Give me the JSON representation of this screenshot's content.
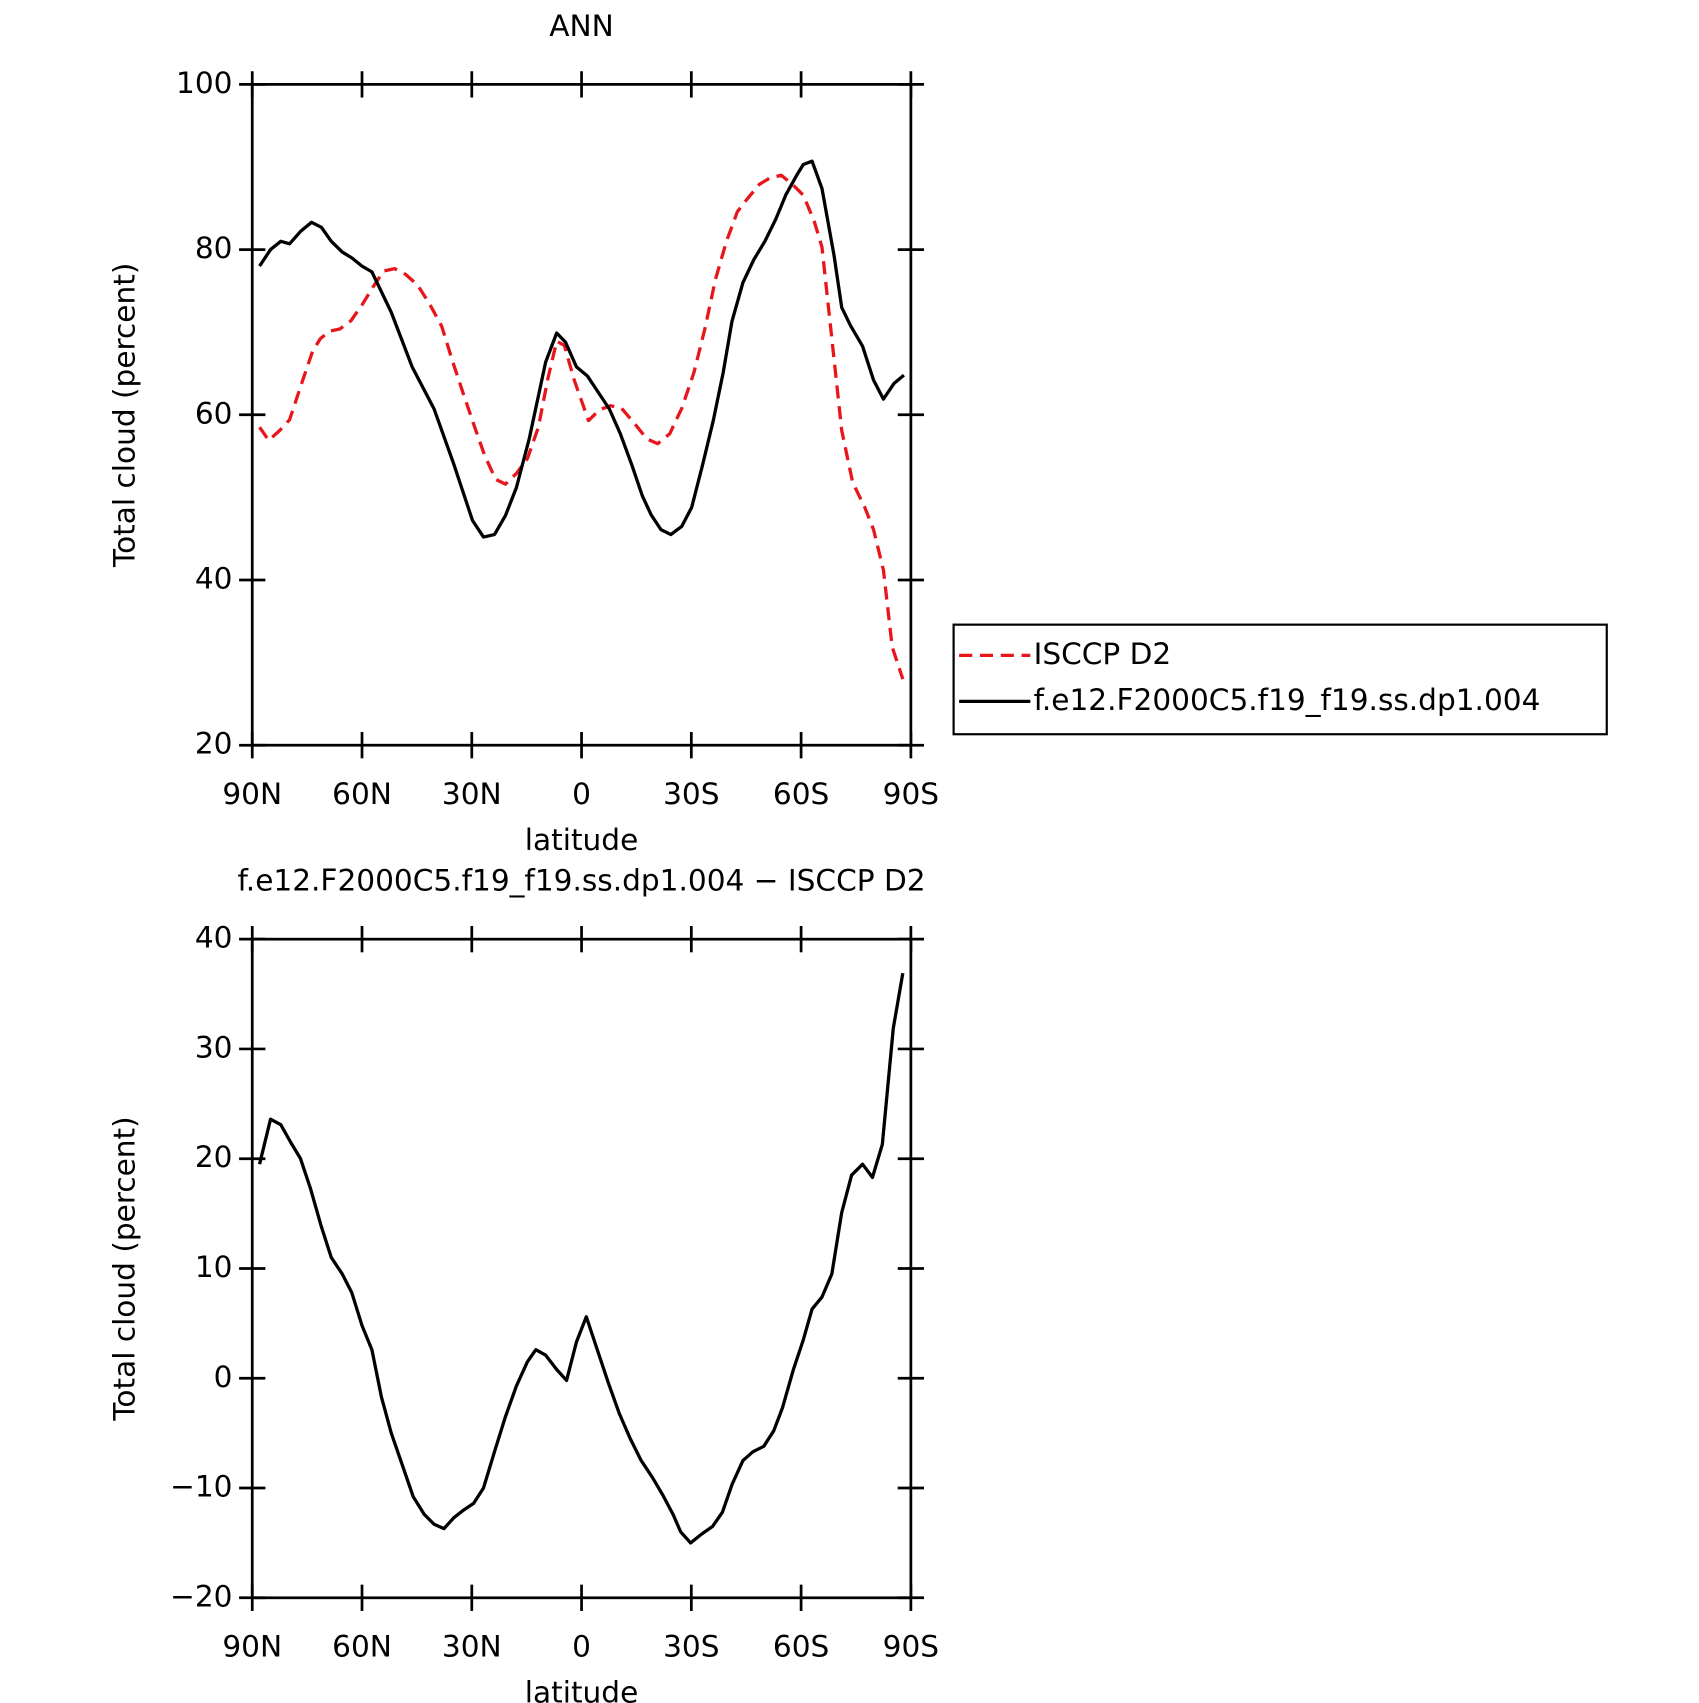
{
  "chart_data": [
    {
      "type": "line",
      "title": "ANN",
      "x_label": "latitude",
      "y_label": "Total cloud (percent)",
      "xlim": [
        90,
        -90
      ],
      "ylim": [
        20,
        100
      ],
      "xticks": [
        {
          "value": 90,
          "label": "90N"
        },
        {
          "value": 60,
          "label": "60N"
        },
        {
          "value": 30,
          "label": "30N"
        },
        0,
        {
          "value": -30,
          "label": "30S"
        },
        {
          "value": -60,
          "label": "60S"
        },
        {
          "value": -90,
          "label": "90S"
        }
      ],
      "yticks": [
        20,
        40,
        60,
        80,
        100
      ],
      "legend": "right",
      "series": [
        {
          "name": "ISCCP D2",
          "color": "#e8161b",
          "dash": "dashed",
          "x": [
            88,
            85.5,
            82.5,
            79.8,
            76.5,
            73.5,
            71.4,
            69,
            66,
            63,
            60,
            57.1,
            54.1,
            51.1,
            48.1,
            44.8,
            41.5,
            38.2,
            35.2,
            32.2,
            29.2,
            26.5,
            23.5,
            20.8,
            17.8,
            14.8,
            11.8,
            9.2,
            6.8,
            4.7,
            2,
            -1.9,
            -4.9,
            -7.9,
            -10.9,
            -14.2,
            -17.8,
            -20.8,
            -24.1,
            -27.4,
            -30.7,
            -33.7,
            -36.6,
            -39.6,
            -42.6,
            -45.6,
            -48.6,
            -51.6,
            -54.6,
            -57.6,
            -60.6,
            -63.6,
            -65.7,
            -67.8,
            -71.1,
            -74.1,
            -77.4,
            -79.8,
            -82.5,
            -84.9,
            -87.8
          ],
          "values": [
            58.5,
            56.9,
            58.1,
            59.4,
            63.8,
            67.7,
            69.2,
            70.1,
            70.4,
            71.4,
            73.3,
            75.4,
            77.4,
            77.7,
            77,
            75.7,
            73.4,
            70.7,
            66.4,
            62.4,
            58.5,
            55.1,
            52.2,
            51.6,
            52.9,
            54.7,
            58.5,
            64.4,
            68.9,
            68.4,
            64.2,
            59.3,
            60.6,
            61.1,
            60.8,
            59.1,
            57.1,
            56.5,
            57.7,
            60.8,
            65.1,
            70.4,
            76.4,
            81,
            84.6,
            86.3,
            87.9,
            88.7,
            89,
            87.9,
            86.6,
            83.4,
            80.3,
            71.7,
            58.1,
            51.8,
            48.8,
            46.1,
            41.2,
            31.9,
            28
          ]
        },
        {
          "name": "f.e12.F2000C5.f19_f19.ss.dp1.004",
          "color": "#000000",
          "dash": "solid",
          "x": [
            88,
            85,
            82.2,
            79.8,
            76.8,
            73.8,
            71.1,
            68.4,
            65.4,
            62.8,
            60,
            57.3,
            52,
            46.3,
            40.3,
            34.9,
            29.8,
            26.8,
            23.8,
            20.8,
            17.8,
            14.3,
            9.8,
            6.8,
            4.4,
            1.4,
            -1.6,
            -4.6,
            -7.6,
            -10.6,
            -13.6,
            -16.6,
            -19,
            -21.7,
            -24.4,
            -27.4,
            -30.1,
            -33,
            -36,
            -38.7,
            -41.1,
            -44.1,
            -47.1,
            -50.1,
            -53.1,
            -55.8,
            -58.8,
            -60.6,
            -63,
            -65.7,
            -69,
            -71.1,
            -73.5,
            -76.8,
            -79.8,
            -82.5,
            -85.4,
            -88.1
          ],
          "values": [
            78,
            80,
            81,
            80.7,
            82.2,
            83.3,
            82.7,
            81,
            79.7,
            79,
            78,
            77.3,
            72.4,
            65.8,
            60.7,
            54,
            47.2,
            45.2,
            45.5,
            47.8,
            51.2,
            57.1,
            66.4,
            69.9,
            68.8,
            65.8,
            64.7,
            62.7,
            60.7,
            57.7,
            54.1,
            50.2,
            47.9,
            46.1,
            45.5,
            46.5,
            48.8,
            53.8,
            59.3,
            65.1,
            71.3,
            76,
            78.8,
            81,
            83.7,
            86.6,
            89,
            90.3,
            90.7,
            87.4,
            79.3,
            73,
            70.8,
            68.3,
            64.2,
            61.9,
            63.8,
            64.8
          ]
        }
      ]
    },
    {
      "type": "line",
      "title": "f.e12.F2000C5.f19_f19.ss.dp1.004 − ISCCP D2",
      "x_label": "latitude",
      "y_label": "Total cloud (percent)",
      "xlim": [
        90,
        -90
      ],
      "ylim": [
        -20,
        40
      ],
      "xticks": [
        {
          "value": 90,
          "label": "90N"
        },
        {
          "value": 60,
          "label": "60N"
        },
        {
          "value": 30,
          "label": "30N"
        },
        0,
        {
          "value": -30,
          "label": "30S"
        },
        {
          "value": -60,
          "label": "60S"
        },
        {
          "value": -90,
          "label": "90S"
        }
      ],
      "yticks": [
        {
          "value": -20,
          "label": "−20"
        },
        {
          "value": -10,
          "label": "−10"
        },
        0,
        10,
        20,
        30,
        40
      ],
      "series": [
        {
          "color": "#000000",
          "dash": "solid",
          "x": [
            88,
            85,
            82.2,
            79.5,
            76.8,
            74.1,
            71.1,
            68.4,
            65.4,
            62.8,
            60,
            57.3,
            54.7,
            52,
            49,
            46,
            43,
            40.3,
            37.6,
            34.9,
            32.2,
            29.5,
            26.8,
            23.8,
            20.8,
            17.8,
            14.8,
            12.5,
            9.8,
            6.8,
            4.1,
            1.4,
            -1.3,
            -4.3,
            -7.3,
            -10.3,
            -13.3,
            -16.3,
            -19.3,
            -22.3,
            -25,
            -27.1,
            -29.8,
            -32.8,
            -35.8,
            -38.5,
            -41.1,
            -44.1,
            -46.8,
            -49.8,
            -52.5,
            -54.9,
            -57.9,
            -60.6,
            -63,
            -65.7,
            -68.4,
            -71.1,
            -73.8,
            -76.8,
            -79.5,
            -82.2,
            -85.2,
            -87.8
          ],
          "values": [
            19.5,
            23.6,
            23.1,
            21.5,
            20,
            17.3,
            13.8,
            11,
            9.5,
            7.8,
            4.8,
            2.6,
            -1.7,
            -5,
            -7.9,
            -10.8,
            -12.4,
            -13.3,
            -13.7,
            -12.7,
            -12,
            -11.4,
            -10,
            -6.7,
            -3.5,
            -0.7,
            1.5,
            2.6,
            2.1,
            0.8,
            -0.2,
            3.3,
            5.6,
            2.6,
            -0.4,
            -3.2,
            -5.5,
            -7.5,
            -9,
            -10.7,
            -12.4,
            -14,
            -15,
            -14.2,
            -13.5,
            -12.2,
            -9.7,
            -7.5,
            -6.7,
            -6.2,
            -4.8,
            -2.7,
            0.8,
            3.5,
            6.3,
            7.4,
            9.5,
            15.1,
            18.5,
            19.5,
            18.3,
            21.3,
            31.9,
            36.9
          ]
        }
      ]
    }
  ]
}
